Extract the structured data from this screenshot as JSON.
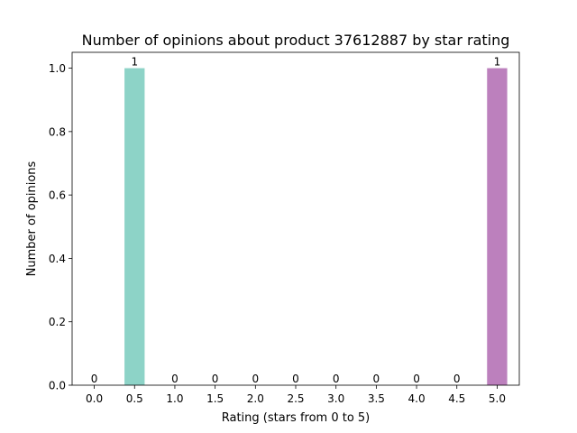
{
  "chart_data": {
    "type": "bar",
    "title": "Number of opinions about product 37612887 by star rating",
    "xlabel": "Rating (stars from 0 to 5)",
    "ylabel": "Number of opinions",
    "categories": [
      "0.0",
      "0.5",
      "1.0",
      "1.5",
      "2.0",
      "2.5",
      "3.0",
      "3.5",
      "4.0",
      "4.5",
      "5.0"
    ],
    "values": [
      0,
      1,
      0,
      0,
      0,
      0,
      0,
      0,
      0,
      0,
      1
    ],
    "data_labels": [
      "0",
      "1",
      "0",
      "0",
      "0",
      "0",
      "0",
      "0",
      "0",
      "0",
      "1"
    ],
    "colors": [
      "#8dd3c7",
      "#8dd3c7",
      "#ffffb3",
      "#bebada",
      "#fb8072",
      "#80b1d3",
      "#fdb462",
      "#b3de69",
      "#fccde5",
      "#d9d9d9",
      "#bc80bd"
    ],
    "ylim": [
      0,
      1.05
    ],
    "yticks": [
      "0.0",
      "0.2",
      "0.4",
      "0.6",
      "0.8",
      "1.0"
    ],
    "ytick_values": [
      0,
      0.2,
      0.4,
      0.6,
      0.8,
      1.0
    ],
    "grid": false,
    "legend": "none"
  }
}
